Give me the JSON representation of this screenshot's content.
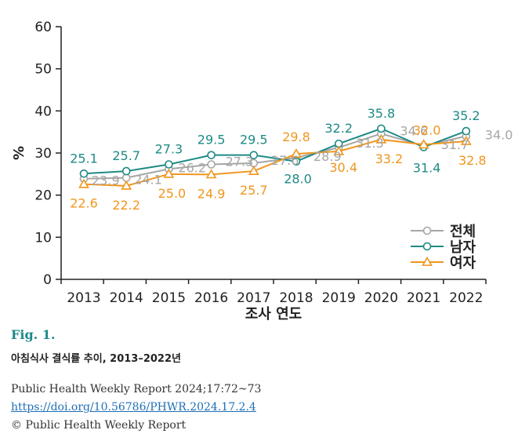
{
  "chart_data": {
    "type": "line",
    "title": "",
    "xlabel": "조사 연도",
    "ylabel": "%",
    "ylim": [
      0,
      60
    ],
    "yticks": [
      0,
      10,
      20,
      30,
      40,
      50,
      60
    ],
    "categories": [
      "2013",
      "2014",
      "2015",
      "2016",
      "2017",
      "2018",
      "2019",
      "2020",
      "2021",
      "2022"
    ],
    "legend_position": "bottom-right",
    "series": [
      {
        "name": "전체",
        "marker": "circle",
        "color": "#a6a6a6",
        "values": [
          23.9,
          24.1,
          26.2,
          27.3,
          27.6,
          28.9,
          31.3,
          34.6,
          31.7,
          34.0
        ]
      },
      {
        "name": "남자",
        "marker": "circle",
        "color": "#1f8a85",
        "values": [
          25.1,
          25.7,
          27.3,
          29.5,
          29.5,
          28.0,
          32.2,
          35.8,
          31.4,
          35.2
        ]
      },
      {
        "name": "여자",
        "marker": "triangle",
        "color": "#f0961e",
        "values": [
          22.6,
          22.2,
          25.0,
          24.9,
          25.7,
          29.8,
          30.4,
          33.2,
          32.0,
          32.8
        ]
      }
    ]
  },
  "figure": {
    "number": "Fig. 1.",
    "caption": "아침식사 결식률 추이, 2013–2022년"
  },
  "footer": {
    "citation": "Public Health Weekly Report 2024;17:72~73",
    "doi": "https://doi.org/10.56786/PHWR.2024.17.2.4",
    "copyright": "© Public Health Weekly Report"
  }
}
